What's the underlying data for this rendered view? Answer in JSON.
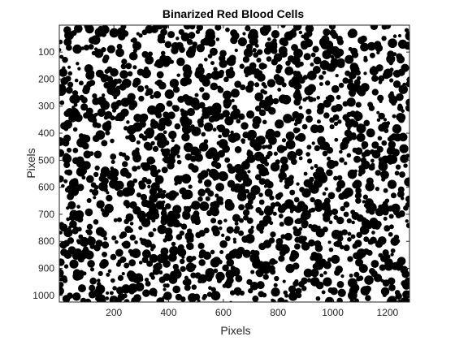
{
  "chart_data": {
    "type": "heatmap",
    "title": "Binarized Red Blood Cells",
    "xlabel": "Pixels",
    "ylabel": "Pixels",
    "x_ticks": [
      200,
      400,
      600,
      800,
      1000,
      1200
    ],
    "y_ticks": [
      100,
      200,
      300,
      400,
      500,
      600,
      700,
      800,
      900,
      1000
    ],
    "xlim": [
      0.5,
      1280.5
    ],
    "ylim": [
      0.5,
      1024.5
    ],
    "y_axis_direction": "reverse",
    "colormap": [
      "#000000",
      "#ffffff"
    ],
    "image_content": "binary",
    "white_fraction": 0.6,
    "grid": false,
    "box": true
  }
}
